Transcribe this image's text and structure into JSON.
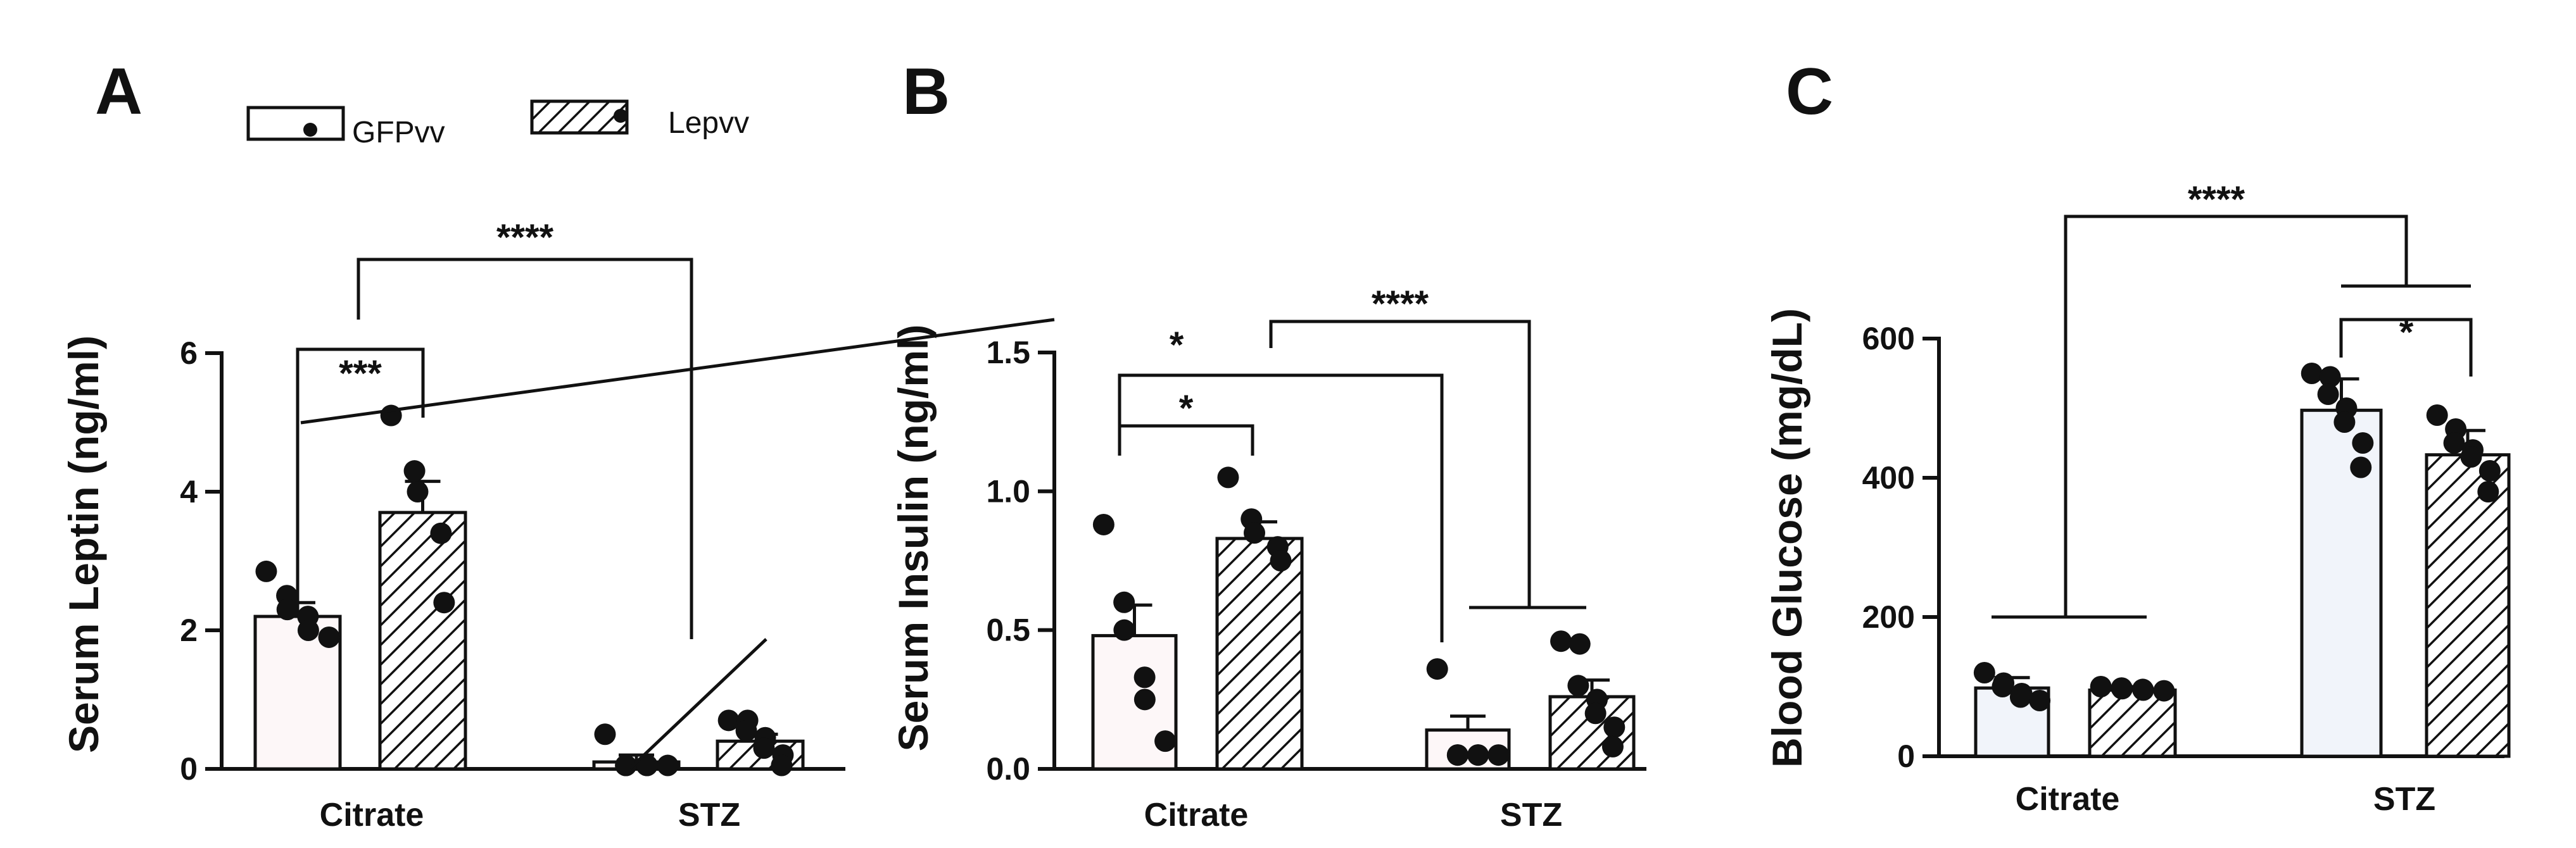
{
  "legend": [
    {
      "label": "GFPvv",
      "pattern": "open"
    },
    {
      "label": "Lepvv",
      "pattern": "hatched"
    }
  ],
  "colors": {
    "ink": "#111111",
    "open_fill_a": "#fdf7f8",
    "open_fill_b": "#fdf7f8",
    "open_fill_c": "#f1f4fa"
  },
  "chart_data": [
    {
      "panel": "A",
      "type": "bar",
      "ylabel": "Serum Leptin (ng/ml)",
      "categories": [
        "Citrate",
        "STZ"
      ],
      "yticks": [
        0,
        2,
        4,
        6
      ],
      "ylim": [
        0,
        6
      ],
      "series": [
        {
          "name": "GFPvv",
          "values": [
            2.2,
            0.1
          ],
          "errors": [
            0.2,
            0.1
          ],
          "points": [
            [
              2.85,
              2.5,
              2.3,
              2.2,
              2.0,
              1.9
            ],
            [
              0.5,
              0.05,
              0.05,
              0.05,
              0.05,
              0.05
            ]
          ]
        },
        {
          "name": "Lepvv",
          "values": [
            3.7,
            0.4
          ],
          "errors": [
            0.45,
            0.1
          ],
          "points": [
            [
              5.1,
              4.3,
              4.0,
              3.4,
              2.4
            ],
            [
              0.7,
              0.7,
              0.55,
              0.45,
              0.3,
              0.2,
              0.05
            ]
          ]
        }
      ],
      "significance": [
        {
          "label": "***",
          "y": 6.0
        },
        {
          "label": "****",
          "y": 7.4
        }
      ]
    },
    {
      "panel": "B",
      "type": "bar",
      "ylabel": "Serum Insulin  (ng/ml)",
      "categories": [
        "Citrate",
        "STZ"
      ],
      "yticks": [
        "0.0",
        "0.5",
        "1.0",
        "1.5"
      ],
      "ylim": [
        0,
        1.5
      ],
      "series": [
        {
          "name": "GFPvv",
          "values": [
            0.48,
            0.14
          ],
          "errors": [
            0.11,
            0.05
          ],
          "points": [
            [
              0.88,
              0.6,
              0.5,
              0.33,
              0.25,
              0.1
            ],
            [
              0.36,
              0.05,
              0.05,
              0.05,
              0.05,
              0.05
            ]
          ]
        },
        {
          "name": "Lepvv",
          "values": [
            0.83,
            0.26
          ],
          "errors": [
            0.06,
            0.06
          ],
          "points": [
            [
              1.05,
              0.9,
              0.85,
              0.8,
              0.75
            ],
            [
              0.46,
              0.45,
              0.3,
              0.25,
              0.2,
              0.15,
              0.08
            ]
          ]
        }
      ],
      "significance": [
        {
          "label": "*",
          "y": 1.24
        },
        {
          "label": "*",
          "y": 1.41
        },
        {
          "label": "****",
          "y": 1.61
        }
      ]
    },
    {
      "panel": "C",
      "type": "bar",
      "ylabel": "Blood Glucose (mg/dL)",
      "categories": [
        "Citrate",
        "STZ"
      ],
      "yticks": [
        0,
        200,
        400,
        600
      ],
      "ylim": [
        0,
        600
      ],
      "series": [
        {
          "name": "GFPvv",
          "values": [
            98,
            497
          ],
          "errors": [
            15,
            45
          ],
          "points": [
            [
              120,
              105,
              100,
              90,
              85,
              80
            ],
            [
              550,
              545,
              520,
              500,
              480,
              450,
              415
            ]
          ]
        },
        {
          "name": "Lepvv",
          "values": [
            95,
            433
          ],
          "errors": [
            5,
            35
          ],
          "points": [
            [
              100,
              98,
              97,
              96,
              95,
              94
            ],
            [
              490,
              470,
              450,
              440,
              430,
              410,
              380
            ]
          ]
        }
      ],
      "significance": [
        {
          "label": "*",
          "y": 635
        },
        {
          "label": "****",
          "y": 800
        }
      ]
    }
  ]
}
